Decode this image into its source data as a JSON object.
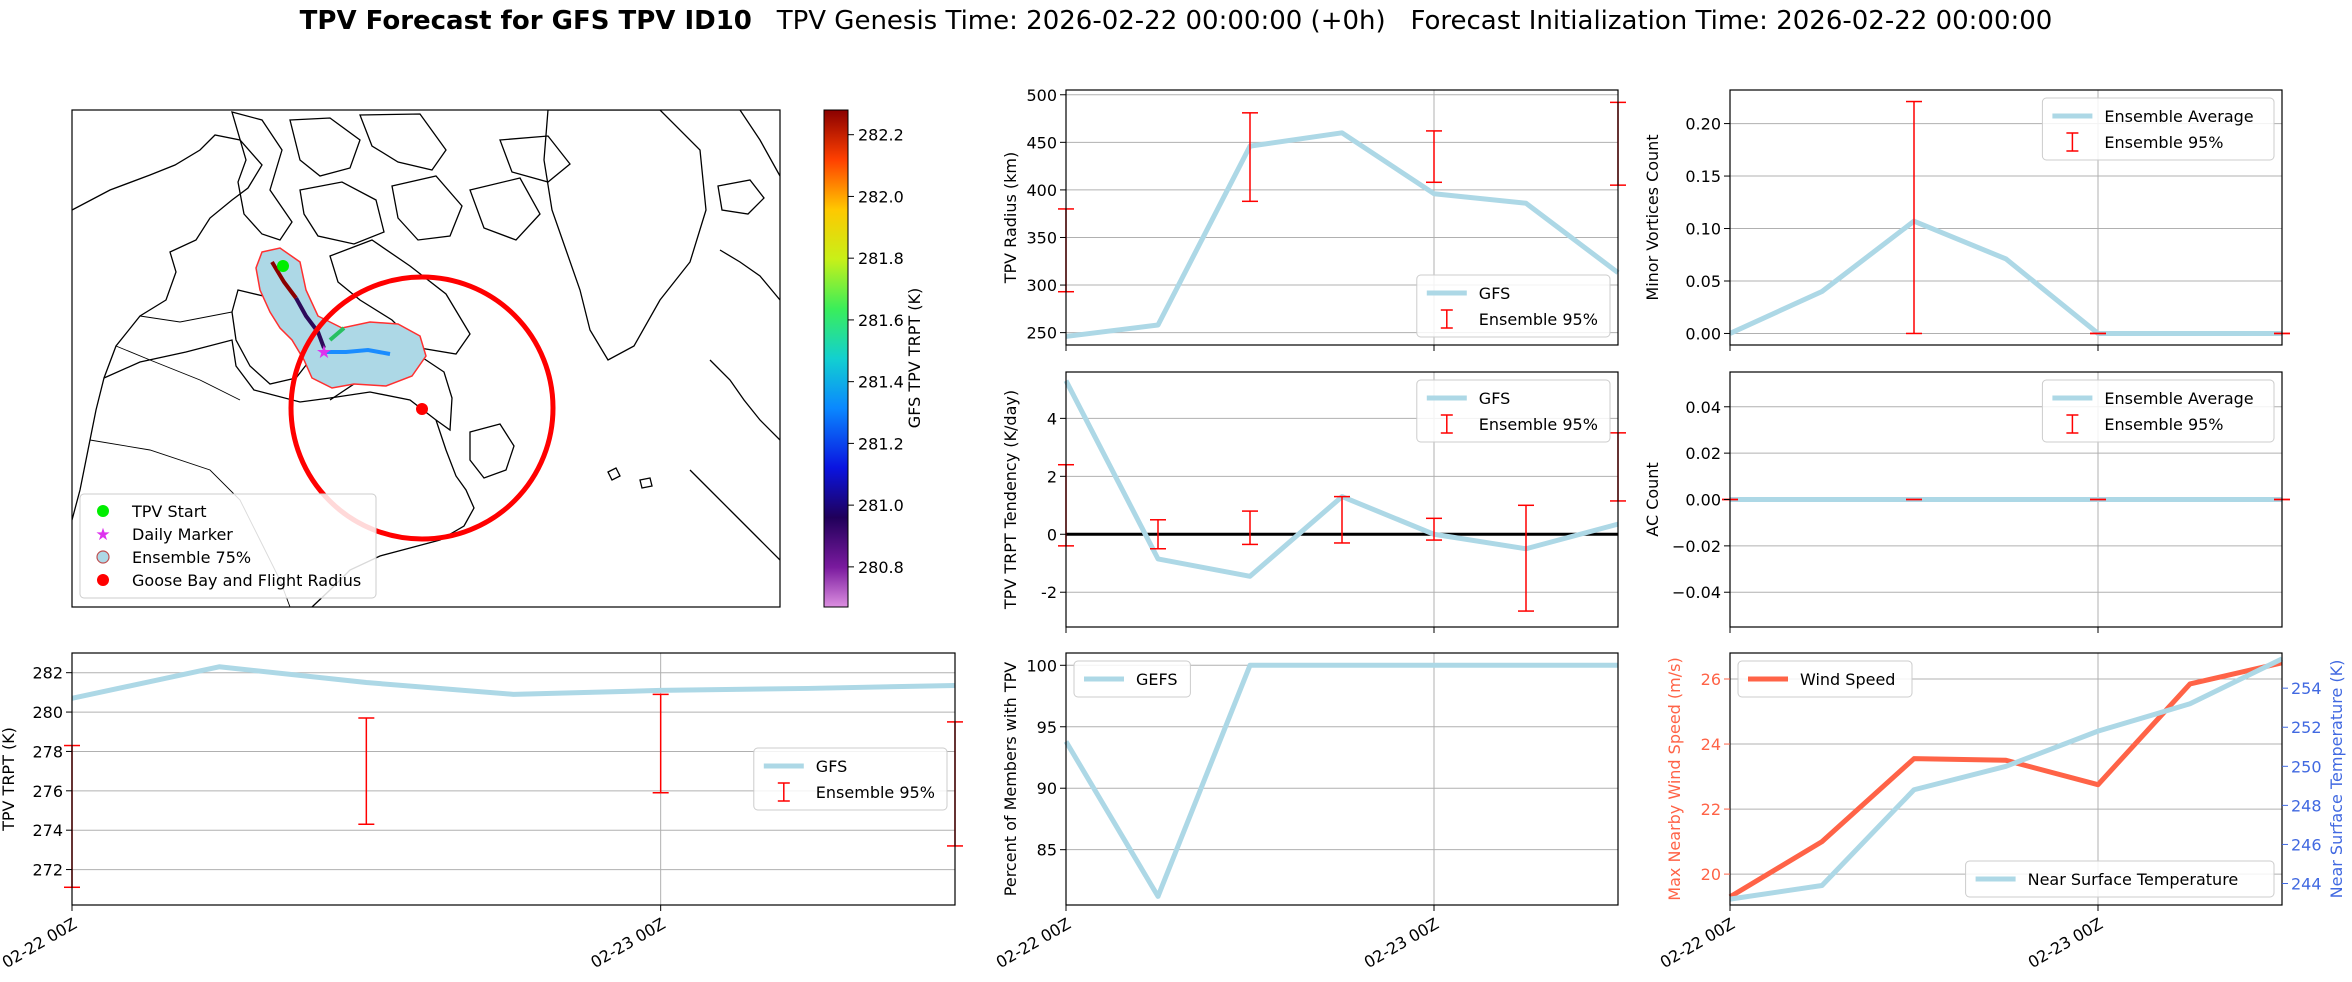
{
  "figure": {
    "title_bold": "TPV Forecast for GFS TPV ID10",
    "title_genesis": "TPV Genesis Time: 2026-02-22 00:00:00 (+0h)",
    "title_init": "Forecast Initialization Time: 2026-02-22 00:00:00"
  },
  "colors": {
    "gfs_line": "#add8e6",
    "errorbar": "#ff0000",
    "wind": "#ff6347",
    "temp_axis": "#4169e1",
    "grid": "#b0b0b0"
  },
  "map": {
    "colorbar_label": "GFS TPV TRPT (K)",
    "colorbar_ticks": [
      "280.8",
      "281.0",
      "281.2",
      "281.4",
      "281.6",
      "281.8",
      "282.0",
      "282.2"
    ],
    "colorbar_values": [
      280.8,
      281.0,
      281.2,
      281.4,
      281.6,
      281.8,
      282.0,
      282.2
    ],
    "colorbar_range": [
      280.67,
      282.28
    ],
    "legend": [
      "TPV Start",
      "Daily Marker",
      "Ensemble 75%",
      "Goose Bay and Flight Radius"
    ]
  },
  "chart_data": [
    {
      "id": "radius",
      "type": "line",
      "ylabel": "TPV Radius (km)",
      "x": [
        0,
        6,
        12,
        18,
        24,
        30,
        36
      ],
      "xlim": [
        0,
        36
      ],
      "ylim": [
        237,
        505
      ],
      "yticks": [
        250,
        300,
        350,
        400,
        450,
        500
      ],
      "xticks": [],
      "xtick_labels": [],
      "series": [
        {
          "name": "GFS",
          "values": [
            246,
            258,
            446,
            460,
            396,
            386,
            313
          ]
        }
      ],
      "errorbars": {
        "name": "Ensemble 95%",
        "x": [
          0,
          12,
          24,
          36
        ],
        "low": [
          293,
          388,
          408,
          405
        ],
        "high": [
          380,
          481,
          462,
          492
        ]
      },
      "legend": [
        "GFS",
        "Ensemble 95%"
      ],
      "legend_loc": "lower-right"
    },
    {
      "id": "minor",
      "type": "line",
      "ylabel": "Minor Vortices Count",
      "x": [
        0,
        6,
        12,
        18,
        24,
        30,
        36
      ],
      "xlim": [
        0,
        36
      ],
      "ylim": [
        -0.011,
        0.232
      ],
      "yticks": [
        0.0,
        0.05,
        0.1,
        0.15,
        0.2
      ],
      "ytick_labels": [
        "0.00",
        "0.05",
        "0.10",
        "0.15",
        "0.20"
      ],
      "xticks": [],
      "xtick_labels": [],
      "series": [
        {
          "name": "Ensemble Average",
          "values": [
            0.0,
            0.04,
            0.107,
            0.071,
            0.0,
            0.0,
            0.0
          ]
        }
      ],
      "errorbars": {
        "name": "Ensemble 95%",
        "x": [
          12,
          24,
          36
        ],
        "low": [
          0.0,
          0.0,
          0.0
        ],
        "high": [
          0.221,
          0.0,
          0.0
        ]
      },
      "legend": [
        "Ensemble Average",
        "Ensemble 95%"
      ],
      "legend_loc": "top-right"
    },
    {
      "id": "tendency",
      "type": "line",
      "ylabel": "TPV TRPT Tendency (K/day)",
      "x": [
        0,
        6,
        12,
        18,
        24,
        30,
        36
      ],
      "xlim": [
        0,
        36
      ],
      "ylim": [
        -3.2,
        5.6
      ],
      "yticks": [
        -2,
        0,
        2,
        4
      ],
      "xticks": [],
      "xtick_labels": [],
      "series": [
        {
          "name": "GFS",
          "values": [
            5.3,
            -0.85,
            -1.45,
            1.3,
            0.0,
            -0.5,
            0.35
          ]
        }
      ],
      "errorbars": {
        "name": "Ensemble 95%",
        "x": [
          0,
          6,
          12,
          18,
          24,
          30,
          36
        ],
        "low": [
          -0.4,
          -0.5,
          -0.35,
          -0.3,
          -0.2,
          -2.65,
          1.15
        ],
        "high": [
          2.4,
          0.5,
          0.8,
          1.3,
          0.55,
          1.0,
          3.5
        ]
      },
      "zero_line": true,
      "legend": [
        "GFS",
        "Ensemble 95%"
      ],
      "legend_loc": "top-right"
    },
    {
      "id": "ac",
      "type": "line",
      "ylabel": "AC Count",
      "x": [
        0,
        6,
        12,
        18,
        24,
        30,
        36
      ],
      "xlim": [
        0,
        36
      ],
      "ylim": [
        -0.055,
        0.055
      ],
      "yticks": [
        -0.04,
        -0.02,
        0.0,
        0.02,
        0.04
      ],
      "ytick_labels": [
        "−0.04",
        "−0.02",
        "0.00",
        "0.02",
        "0.04"
      ],
      "xticks": [],
      "xtick_labels": [],
      "series": [
        {
          "name": "Ensemble Average",
          "values": [
            0,
            0,
            0,
            0,
            0,
            0,
            0
          ]
        }
      ],
      "errorbars": {
        "name": "Ensemble 95%",
        "x": [
          0,
          12,
          24,
          36
        ],
        "low": [
          0,
          0,
          0,
          0
        ],
        "high": [
          0,
          0,
          0,
          0
        ]
      },
      "legend": [
        "Ensemble Average",
        "Ensemble 95%"
      ],
      "legend_loc": "top-right"
    },
    {
      "id": "trpt",
      "type": "line",
      "ylabel": "TPV TRPT (K)",
      "x": [
        0,
        6,
        12,
        18,
        24,
        30,
        36
      ],
      "xlim": [
        0,
        36
      ],
      "ylim": [
        270.2,
        283.0
      ],
      "yticks": [
        272,
        274,
        276,
        278,
        280,
        282
      ],
      "xticks": [
        0,
        24
      ],
      "xtick_labels": [
        "02-22 00Z",
        "02-23 00Z"
      ],
      "series": [
        {
          "name": "GFS",
          "values": [
            280.7,
            282.3,
            281.5,
            280.9,
            281.1,
            281.2,
            281.35
          ]
        }
      ],
      "errorbars": {
        "name": "Ensemble 95%",
        "x": [
          0,
          12,
          24,
          36
        ],
        "low": [
          271.1,
          274.3,
          275.9,
          273.2
        ],
        "high": [
          278.3,
          279.7,
          280.9,
          279.5
        ]
      },
      "legend": [
        "GFS",
        "Ensemble 95%"
      ],
      "legend_loc": "center-right"
    },
    {
      "id": "percent",
      "type": "line",
      "ylabel": "Percent of Members with TPV",
      "x": [
        0,
        6,
        12,
        18,
        24,
        30,
        36
      ],
      "xlim": [
        0,
        36
      ],
      "ylim": [
        80.5,
        101.0
      ],
      "yticks": [
        85,
        90,
        95,
        100
      ],
      "xticks": [
        0,
        24
      ],
      "xtick_labels": [
        "02-22 00Z",
        "02-23 00Z"
      ],
      "series": [
        {
          "name": "GEFS",
          "values": [
            93.8,
            81.2,
            100,
            100,
            100,
            100,
            100
          ]
        }
      ],
      "legend": [
        "GEFS"
      ],
      "legend_loc": "top-left"
    },
    {
      "id": "wind",
      "type": "line",
      "ylabel": "Max Nearby Wind Speed (m/s)",
      "ylabel2": "Near Surface Temperature (K)",
      "x": [
        0,
        6,
        12,
        18,
        24,
        30,
        36
      ],
      "xlim": [
        0,
        36
      ],
      "ylim": [
        19.05,
        26.8
      ],
      "ylim2": [
        242.9,
        255.8
      ],
      "yticks": [
        20,
        22,
        24,
        26
      ],
      "yticks2": [
        244,
        246,
        248,
        250,
        252,
        254
      ],
      "xticks": [
        0,
        24
      ],
      "xtick_labels": [
        "02-22 00Z",
        "02-23 00Z"
      ],
      "series": [
        {
          "name": "Wind Speed",
          "axis": "left",
          "values": [
            19.3,
            21.0,
            23.55,
            23.5,
            22.75,
            25.85,
            26.5
          ]
        },
        {
          "name": "Near Surface Temperature",
          "axis": "right",
          "values": [
            243.2,
            243.9,
            248.8,
            250.0,
            251.8,
            253.2,
            255.5
          ]
        }
      ],
      "legend": [
        "Wind Speed"
      ],
      "legend2": [
        "Near Surface Temperature"
      ]
    }
  ]
}
